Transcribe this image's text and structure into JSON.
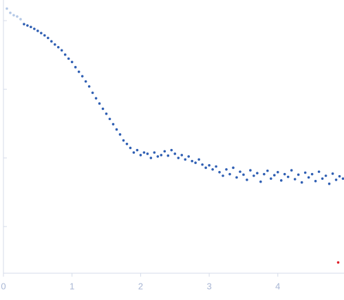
{
  "chart_data": {
    "type": "scatter",
    "xlim": [
      0,
      4.965
    ],
    "xticks": [
      0,
      1,
      2,
      3,
      4
    ],
    "ylim": [
      0.000209,
      2.0
    ],
    "yticks": [
      0.001,
      0.01,
      0.1,
      1
    ],
    "ylog": true,
    "series": [
      {
        "color": "#b4c8e6",
        "x": [
          0.05,
          0.1,
          0.15,
          0.2,
          0.25
        ],
        "values": [
          1.5,
          1.3,
          1.2,
          1.15,
          1.05
        ]
      },
      {
        "color": "#2f5fb3",
        "x": [
          0.3,
          0.35,
          0.4,
          0.45,
          0.5,
          0.55,
          0.6,
          0.65,
          0.7,
          0.75,
          0.8,
          0.85,
          0.9,
          0.95,
          1.0,
          1.05,
          1.1,
          1.15,
          1.2,
          1.25,
          1.3,
          1.35,
          1.4,
          1.45,
          1.5,
          1.55,
          1.6,
          1.65,
          1.7,
          1.75,
          1.8,
          1.85,
          1.9,
          1.95,
          2.0,
          2.05,
          2.1,
          2.15,
          2.2,
          2.25,
          2.3,
          2.35,
          2.4,
          2.45,
          2.5,
          2.55,
          2.6,
          2.65,
          2.7,
          2.75,
          2.8,
          2.85,
          2.9,
          2.95,
          3.0,
          3.05,
          3.1,
          3.15,
          3.2,
          3.25,
          3.3,
          3.35,
          3.4,
          3.45,
          3.5,
          3.55,
          3.6,
          3.65,
          3.7,
          3.75,
          3.8,
          3.85,
          3.9,
          3.95,
          4.0,
          4.05,
          4.1,
          4.15,
          4.2,
          4.25,
          4.3,
          4.35,
          4.4,
          4.45,
          4.5,
          4.55,
          4.6,
          4.65,
          4.7,
          4.75,
          4.8,
          4.85,
          4.9,
          4.95
        ],
        "values": [
          0.89,
          0.85,
          0.81,
          0.76,
          0.71,
          0.66,
          0.61,
          0.56,
          0.5,
          0.45,
          0.41,
          0.37,
          0.32,
          0.28,
          0.25,
          0.21,
          0.18,
          0.155,
          0.13,
          0.11,
          0.089,
          0.074,
          0.062,
          0.052,
          0.044,
          0.037,
          0.031,
          0.026,
          0.022,
          0.018,
          0.016,
          0.014,
          0.012,
          0.013,
          0.011,
          0.012,
          0.0115,
          0.01,
          0.012,
          0.0105,
          0.011,
          0.0125,
          0.0108,
          0.013,
          0.0115,
          0.01,
          0.011,
          0.0095,
          0.0105,
          0.009,
          0.0085,
          0.0095,
          0.008,
          0.0072,
          0.0078,
          0.0068,
          0.0075,
          0.0062,
          0.0055,
          0.0068,
          0.0058,
          0.0072,
          0.0052,
          0.0063,
          0.0057,
          0.0048,
          0.0066,
          0.0055,
          0.006,
          0.0045,
          0.0058,
          0.0065,
          0.005,
          0.0056,
          0.0062,
          0.0047,
          0.0058,
          0.0053,
          0.0066,
          0.0049,
          0.0057,
          0.0044,
          0.0061,
          0.0052,
          0.0058,
          0.0046,
          0.0063,
          0.005,
          0.0055,
          0.0042,
          0.0059,
          0.0048,
          0.0054,
          0.005
        ]
      },
      {
        "color": "#e0202a",
        "x": [
          4.88
        ],
        "values": [
          0.0003
        ]
      }
    ]
  }
}
